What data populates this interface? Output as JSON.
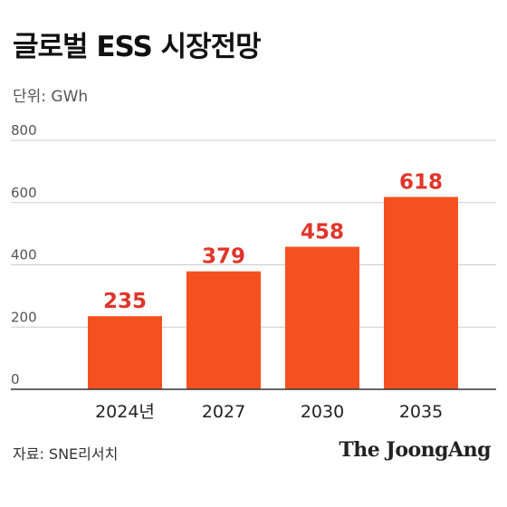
{
  "header": {
    "title": "글로벌 ESS 시장전망",
    "unit": "단위: GWh"
  },
  "footer": {
    "source": "자료: SNE리서치",
    "brand": "The JoongAng"
  },
  "chart_data": {
    "type": "bar",
    "title": "글로벌 ESS 시장전망",
    "categories": [
      "2024년",
      "2027",
      "2030",
      "2035"
    ],
    "values": [
      235,
      379,
      458,
      618
    ],
    "ylim": [
      0,
      800
    ],
    "yticks": [
      0,
      200,
      400,
      600,
      800
    ],
    "ylabel": "",
    "xlabel": "",
    "grid": true,
    "colors": {
      "bar": "#F4511E",
      "label": "#E0352B",
      "grid": "#cccccc",
      "axis": "#333333"
    }
  }
}
